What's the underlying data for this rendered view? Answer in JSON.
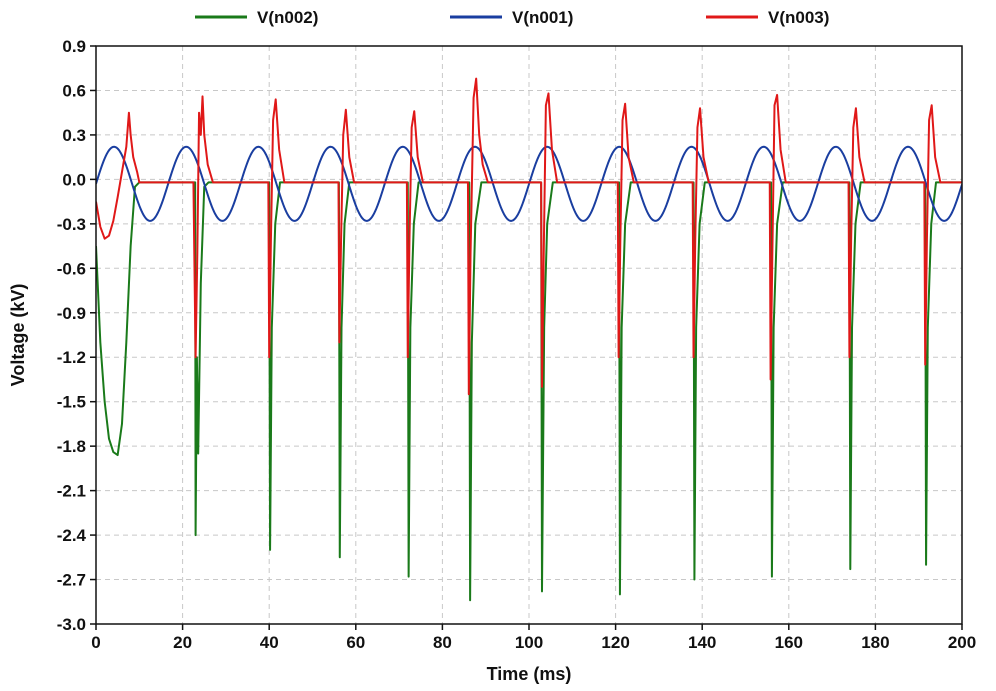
{
  "chart_data": {
    "type": "line",
    "title": "",
    "xlabel": "Time (ms)",
    "ylabel": "Voltage (kV)",
    "xlim": [
      0,
      200
    ],
    "ylim": [
      -3.0,
      0.9
    ],
    "xticks": [
      0,
      20,
      40,
      60,
      80,
      100,
      120,
      140,
      160,
      180,
      200
    ],
    "yticks": [
      0.9,
      0.6,
      0.3,
      0.0,
      -0.3,
      -0.6,
      -0.9,
      -1.2,
      -1.5,
      -1.8,
      -2.1,
      -2.4,
      -2.7,
      -3.0
    ],
    "xtick_labels": [
      "0",
      "20",
      "40",
      "60",
      "80",
      "100",
      "120",
      "140",
      "160",
      "180",
      "200"
    ],
    "ytick_labels": [
      "0.9",
      "0.6",
      "0.3",
      "0.0",
      "-0.3",
      "-0.6",
      "-0.9",
      "-1.2",
      "-1.5",
      "-1.8",
      "-2.1",
      "-2.4",
      "-2.7",
      "-3.0"
    ],
    "grid": true,
    "legend_position": "top",
    "series": [
      {
        "name": "V(n002)",
        "color": "#1a7a1a",
        "x": [
          0,
          1,
          2,
          3,
          4,
          5,
          6,
          7,
          8,
          9,
          10,
          22.9,
          23,
          23.3,
          23.6,
          24.2,
          25,
          26,
          40,
          40.2,
          40.6,
          41.4,
          42.5,
          56.1,
          56.3,
          56.7,
          57.4,
          58.5,
          72,
          72.2,
          72.6,
          73.4,
          74.5,
          86.2,
          86.4,
          86.8,
          87.6,
          89,
          102.8,
          103,
          103.5,
          104.2,
          105.5,
          120.8,
          121,
          121.4,
          122.2,
          123.5,
          138,
          138.2,
          138.6,
          139.4,
          140.6,
          155.9,
          156.1,
          156.5,
          157.3,
          158.6,
          174,
          174.2,
          174.6,
          175.4,
          176.6,
          191.5,
          191.7,
          192.1,
          192.9,
          194,
          200
        ],
        "y": [
          -0.45,
          -1.1,
          -1.5,
          -1.75,
          -1.84,
          -1.86,
          -1.65,
          -1.1,
          -0.45,
          -0.05,
          -0.02,
          -0.02,
          -2.4,
          -1.2,
          -1.85,
          -0.7,
          -0.05,
          -0.02,
          -0.02,
          -2.5,
          -1.0,
          -0.3,
          -0.02,
          -0.02,
          -2.55,
          -1.0,
          -0.3,
          -0.02,
          -0.02,
          -2.68,
          -1.0,
          -0.3,
          -0.02,
          -0.02,
          -2.84,
          -1.1,
          -0.3,
          -0.02,
          -0.02,
          -2.78,
          -1.0,
          -0.3,
          -0.02,
          -0.02,
          -2.8,
          -1.0,
          -0.3,
          -0.02,
          -0.02,
          -2.7,
          -1.0,
          -0.3,
          -0.02,
          -0.02,
          -2.68,
          -1.0,
          -0.3,
          -0.02,
          -0.02,
          -2.63,
          -1.0,
          -0.3,
          -0.02,
          -0.02,
          -2.6,
          -1.0,
          -0.3,
          -0.02,
          -0.02
        ]
      },
      {
        "name": "V(n001)",
        "color": "#1a3ea0",
        "function": "sine",
        "offset": -0.03,
        "amplitude": 0.25,
        "period": 16.67,
        "phase": 0
      },
      {
        "name": "V(n003)",
        "color": "#e01818",
        "x": [
          0,
          1,
          2,
          3,
          4,
          5,
          6,
          7,
          7.6,
          8,
          8.6,
          9.5,
          10,
          22.5,
          23,
          23.4,
          23.8,
          24.2,
          24.6,
          25,
          25.8,
          27,
          39.8,
          40,
          40.4,
          40.9,
          41.5,
          42.3,
          43.5,
          56,
          56.2,
          56.6,
          57.1,
          57.7,
          58.5,
          59.6,
          71.8,
          72,
          72.4,
          72.9,
          73.5,
          74.3,
          75.5,
          85.9,
          86.1,
          86.5,
          87.2,
          87.8,
          88.5,
          89.3,
          90.5,
          102.8,
          103,
          103.4,
          103.9,
          104.5,
          105.3,
          106.5,
          120.5,
          120.7,
          121.1,
          121.6,
          122.2,
          123,
          124.2,
          137.8,
          138,
          138.4,
          138.9,
          139.5,
          140.3,
          141.5,
          155.6,
          155.8,
          156.2,
          156.7,
          157.3,
          158.1,
          159.3,
          173.8,
          174,
          174.4,
          174.9,
          175.5,
          176.3,
          177.5,
          191.3,
          191.5,
          191.9,
          192.4,
          193,
          193.8,
          195,
          200
        ],
        "y": [
          -0.15,
          -0.32,
          -0.4,
          -0.38,
          -0.28,
          -0.12,
          0.05,
          0.22,
          0.45,
          0.3,
          0.15,
          0.05,
          -0.02,
          -0.02,
          -1.2,
          -0.5,
          0.45,
          0.3,
          0.56,
          0.3,
          0.1,
          -0.02,
          -0.02,
          -1.2,
          -0.4,
          0.4,
          0.54,
          0.2,
          -0.02,
          -0.02,
          -1.1,
          -0.4,
          0.3,
          0.47,
          0.15,
          -0.02,
          -0.02,
          -1.2,
          -0.4,
          0.35,
          0.46,
          0.15,
          -0.02,
          -0.02,
          -1.45,
          -0.5,
          0.55,
          0.68,
          0.3,
          0.1,
          -0.02,
          -0.02,
          -1.4,
          -0.5,
          0.5,
          0.58,
          0.2,
          -0.02,
          -0.02,
          -1.2,
          -0.4,
          0.4,
          0.51,
          0.15,
          -0.02,
          -0.02,
          -1.2,
          -0.4,
          0.35,
          0.48,
          0.15,
          -0.02,
          -0.02,
          -1.35,
          -0.5,
          0.5,
          0.57,
          0.2,
          -0.02,
          -0.02,
          -1.2,
          -0.4,
          0.35,
          0.48,
          0.15,
          -0.02,
          -0.02,
          -1.25,
          -0.4,
          0.4,
          0.5,
          0.15,
          -0.02,
          -0.02
        ]
      }
    ]
  }
}
